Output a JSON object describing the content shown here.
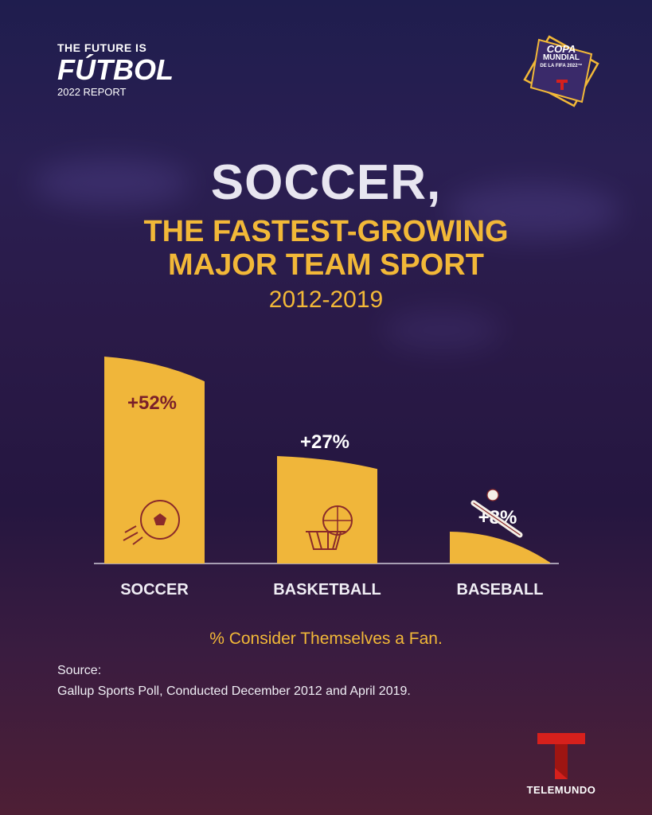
{
  "brand": {
    "line1": "THE FUTURE IS",
    "line2": "FÚTBOL",
    "line3": "2022 REPORT"
  },
  "cup_logo": {
    "line1": "COPA",
    "line2": "MUNDIAL",
    "line3": "DE LA FIFA 2022™"
  },
  "headline": {
    "line1": "SOCCER,",
    "line2a": "THE FASTEST-GROWING",
    "line2b": "MAJOR TEAM SPORT",
    "line3": "2012-2019"
  },
  "chart_data": {
    "type": "bar",
    "categories": [
      "SOCCER",
      "BASKETBALL",
      "BASEBALL"
    ],
    "values": [
      52,
      27,
      8
    ],
    "value_labels": [
      "+52%",
      "+27%",
      "+8%"
    ],
    "icons": [
      "soccer-ball-icon",
      "basketball-hoop-icon",
      "baseball-bat-icon"
    ],
    "ylim": [
      0,
      60
    ],
    "bar_color": "#f0b63a"
  },
  "caption": "% Consider Themselves a Fan.",
  "source": {
    "label": "Source:",
    "text": "Gallup Sports Poll, Conducted December 2012 and April 2019."
  },
  "footer_logo": {
    "name": "TELEMUNDO"
  },
  "colors": {
    "accent": "#f2b838",
    "telemundo_red": "#d6201c"
  }
}
